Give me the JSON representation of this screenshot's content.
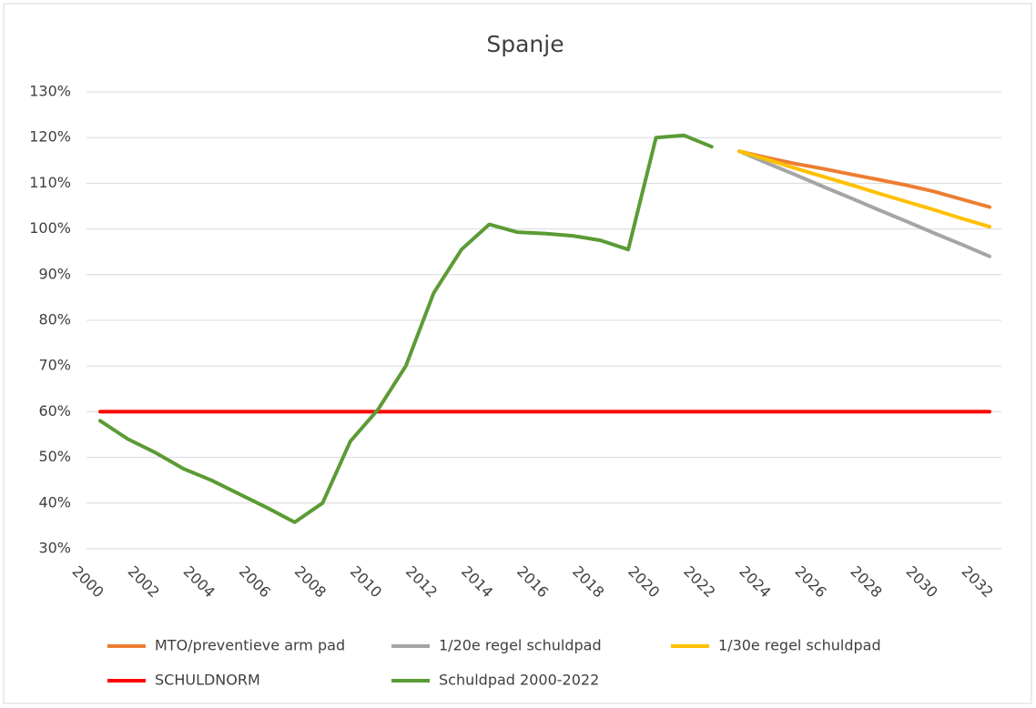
{
  "chart_data": {
    "type": "line",
    "title": "Spanje",
    "x": [
      2000,
      2001,
      2002,
      2003,
      2004,
      2005,
      2006,
      2007,
      2008,
      2009,
      2010,
      2011,
      2012,
      2013,
      2014,
      2015,
      2016,
      2017,
      2018,
      2019,
      2020,
      2021,
      2022,
      2023,
      2024,
      2025,
      2026,
      2027,
      2028,
      2029,
      2030,
      2031,
      2032
    ],
    "xlim": [
      2000,
      2032
    ],
    "xticks": [
      2000,
      2002,
      2004,
      2006,
      2008,
      2010,
      2012,
      2014,
      2016,
      2018,
      2020,
      2022,
      2024,
      2026,
      2028,
      2030,
      2032
    ],
    "ylim": [
      30,
      130
    ],
    "yticks": [
      {
        "value": 30,
        "label": "30%"
      },
      {
        "value": 40,
        "label": "40%"
      },
      {
        "value": 50,
        "label": "50%"
      },
      {
        "value": 60,
        "label": "60%"
      },
      {
        "value": 70,
        "label": "70%"
      },
      {
        "value": 80,
        "label": "80%"
      },
      {
        "value": 90,
        "label": "90%"
      },
      {
        "value": 100,
        "label": "100%"
      },
      {
        "value": 110,
        "label": "110%"
      },
      {
        "value": 120,
        "label": "120%"
      },
      {
        "value": 130,
        "label": "130%"
      }
    ],
    "grid": true,
    "legend": "bottom",
    "series": [
      {
        "name": "MTO/preventieve arm pad",
        "color": "#ed7d31",
        "values": [
          null,
          null,
          null,
          null,
          null,
          null,
          null,
          null,
          null,
          null,
          null,
          null,
          null,
          null,
          null,
          null,
          null,
          null,
          null,
          null,
          null,
          null,
          null,
          117,
          115.6,
          114.3,
          113.2,
          112,
          110.8,
          109.6,
          108.2,
          106.5,
          104.8
        ]
      },
      {
        "name": "1/20e regel schuldpad",
        "color": "#a5a5a5",
        "values": [
          null,
          null,
          null,
          null,
          null,
          null,
          null,
          null,
          null,
          null,
          null,
          null,
          null,
          null,
          null,
          null,
          null,
          null,
          null,
          null,
          null,
          null,
          null,
          117,
          114.4,
          111.9,
          109.3,
          106.8,
          104.2,
          101.7,
          99.1,
          96.6,
          94
        ]
      },
      {
        "name": "1/30e regel schuldpad",
        "color": "#ffc000",
        "values": [
          null,
          null,
          null,
          null,
          null,
          null,
          null,
          null,
          null,
          null,
          null,
          null,
          null,
          null,
          null,
          null,
          null,
          null,
          null,
          null,
          null,
          null,
          null,
          117,
          115.2,
          113.3,
          111.5,
          109.7,
          107.8,
          106,
          104.2,
          102.3,
          100.5
        ]
      },
      {
        "name": "SCHULDNORM",
        "color": "#ff0000",
        "values": [
          60,
          60,
          60,
          60,
          60,
          60,
          60,
          60,
          60,
          60,
          60,
          60,
          60,
          60,
          60,
          60,
          60,
          60,
          60,
          60,
          60,
          60,
          60,
          60,
          60,
          60,
          60,
          60,
          60,
          60,
          60,
          60,
          60
        ]
      },
      {
        "name": "Schuldpad 2000-2022",
        "color": "#5b9b35",
        "values": [
          58,
          54,
          51,
          47.5,
          45,
          42,
          39,
          35.8,
          40,
          53.5,
          60.5,
          70,
          86,
          95.5,
          101,
          99.3,
          99,
          98.5,
          97.5,
          95.5,
          120,
          120.5,
          118,
          null,
          null,
          null,
          null,
          null,
          null,
          null,
          null,
          null,
          null
        ]
      }
    ]
  }
}
